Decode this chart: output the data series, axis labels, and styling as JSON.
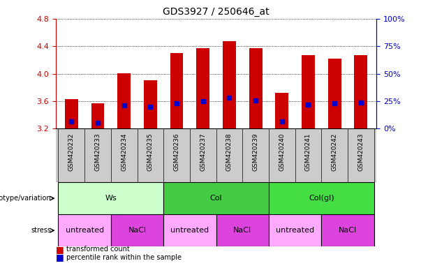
{
  "title": "GDS3927 / 250646_at",
  "samples": [
    "GSM420232",
    "GSM420233",
    "GSM420234",
    "GSM420235",
    "GSM420236",
    "GSM420237",
    "GSM420238",
    "GSM420239",
    "GSM420240",
    "GSM420241",
    "GSM420242",
    "GSM420243"
  ],
  "bar_tops": [
    3.63,
    3.57,
    4.01,
    3.9,
    4.3,
    4.37,
    4.47,
    4.37,
    3.72,
    4.27,
    4.22,
    4.27
  ],
  "bar_bottoms": [
    3.2,
    3.2,
    3.2,
    3.2,
    3.2,
    3.2,
    3.2,
    3.2,
    3.2,
    3.2,
    3.2,
    3.2
  ],
  "blue_dots": [
    3.3,
    3.28,
    3.54,
    3.52,
    3.57,
    3.6,
    3.65,
    3.61,
    3.3,
    3.55,
    3.57,
    3.58
  ],
  "ylim": [
    3.2,
    4.8
  ],
  "yticks_left": [
    3.2,
    3.6,
    4.0,
    4.4,
    4.8
  ],
  "yticks_right": [
    0,
    25,
    50,
    75,
    100
  ],
  "right_tick_labels": [
    "0%",
    "25%",
    "50%",
    "75%",
    "100%"
  ],
  "bar_color": "#cc0000",
  "dot_color": "#0000cc",
  "bar_width": 0.5,
  "genotype_groups": [
    {
      "label": "Ws",
      "start": 0,
      "end": 4,
      "color": "#ccffcc"
    },
    {
      "label": "Col",
      "start": 4,
      "end": 8,
      "color": "#44cc44"
    },
    {
      "label": "Col(gl)",
      "start": 8,
      "end": 12,
      "color": "#44dd44"
    }
  ],
  "stress_groups": [
    {
      "label": "untreated",
      "start": 0,
      "end": 2,
      "color": "#ffaaff"
    },
    {
      "label": "NaCl",
      "start": 2,
      "end": 4,
      "color": "#dd44dd"
    },
    {
      "label": "untreated",
      "start": 4,
      "end": 6,
      "color": "#ffaaff"
    },
    {
      "label": "NaCl",
      "start": 6,
      "end": 8,
      "color": "#dd44dd"
    },
    {
      "label": "untreated",
      "start": 8,
      "end": 10,
      "color": "#ffaaff"
    },
    {
      "label": "NaCl",
      "start": 10,
      "end": 12,
      "color": "#dd44dd"
    }
  ],
  "legend_items": [
    {
      "label": "transformed count",
      "color": "#cc0000"
    },
    {
      "label": "percentile rank within the sample",
      "color": "#0000cc"
    }
  ],
  "genotype_label": "genotype/variation",
  "stress_label": "stress",
  "left_axis_color": "#cc0000",
  "right_axis_color": "#0000cc",
  "table_bg": "#cccccc"
}
